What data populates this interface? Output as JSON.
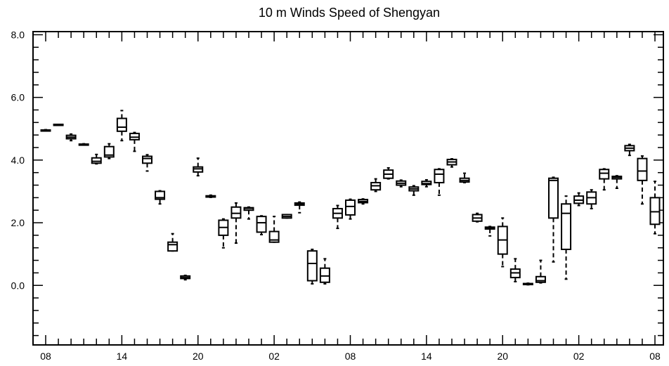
{
  "chart_data": {
    "type": "box",
    "title": "10 m Winds Speed of Shengyan",
    "xlabel": "",
    "ylabel": "",
    "ylim": [
      -1.9,
      8.1
    ],
    "y_ticks": [
      0.0,
      2.0,
      4.0,
      6.0,
      8.0
    ],
    "y_tick_labels": [
      "0.0",
      "2.0",
      "4.0",
      "6.0",
      "8.0"
    ],
    "x_tick_labels": [
      "08",
      "14",
      "20",
      "02",
      "08",
      "14",
      "20",
      "02",
      "08"
    ],
    "x_label_steps": [
      0,
      6,
      12,
      18,
      24,
      30,
      36,
      42,
      48
    ],
    "step_count": 48,
    "x_unit": "hour (time step index from first 08)",
    "boxes": [
      {
        "step": 0,
        "min": 4.93,
        "q1": 4.94,
        "median": 4.95,
        "q3": 4.96,
        "max": 4.97
      },
      {
        "step": 1,
        "min": 5.12,
        "q1": 5.12,
        "median": 5.13,
        "q3": 5.14,
        "max": 5.14
      },
      {
        "step": 2,
        "min": 4.62,
        "q1": 4.68,
        "median": 4.73,
        "q3": 4.79,
        "max": 4.83
      },
      {
        "step": 3,
        "min": 4.48,
        "q1": 4.49,
        "median": 4.5,
        "q3": 4.51,
        "max": 4.52
      },
      {
        "step": 4,
        "min": 3.88,
        "q1": 3.9,
        "median": 3.96,
        "q3": 4.07,
        "max": 4.18
      },
      {
        "step": 5,
        "min": 4.05,
        "q1": 4.1,
        "median": 4.16,
        "q3": 4.43,
        "max": 4.52
      },
      {
        "step": 6,
        "min": 4.62,
        "q1": 4.92,
        "median": 5.05,
        "q3": 5.33,
        "max": 5.58
      },
      {
        "step": 7,
        "min": 4.28,
        "q1": 4.65,
        "median": 4.73,
        "q3": 4.85,
        "max": 4.88
      },
      {
        "step": 8,
        "min": 3.65,
        "q1": 3.9,
        "median": 4.05,
        "q3": 4.12,
        "max": 4.17
      },
      {
        "step": 9,
        "min": 2.6,
        "q1": 2.75,
        "median": 2.8,
        "q3": 3.0,
        "max": 3.02
      },
      {
        "step": 10,
        "min": 1.1,
        "q1": 1.1,
        "median": 1.3,
        "q3": 1.38,
        "max": 1.65
      },
      {
        "step": 11,
        "min": 0.18,
        "q1": 0.22,
        "median": 0.25,
        "q3": 0.3,
        "max": 0.32
      },
      {
        "step": 12,
        "min": 3.5,
        "q1": 3.62,
        "median": 3.72,
        "q3": 3.78,
        "max": 4.06
      },
      {
        "step": 13,
        "min": 2.81,
        "q1": 2.82,
        "median": 2.84,
        "q3": 2.86,
        "max": 2.88
      },
      {
        "step": 14,
        "min": 1.2,
        "q1": 1.6,
        "median": 1.85,
        "q3": 2.08,
        "max": 2.12
      },
      {
        "step": 15,
        "min": 1.35,
        "q1": 2.15,
        "median": 2.3,
        "q3": 2.5,
        "max": 2.63
      },
      {
        "step": 16,
        "min": 2.12,
        "q1": 2.4,
        "median": 2.46,
        "q3": 2.48,
        "max": 2.5
      },
      {
        "step": 17,
        "min": 1.62,
        "q1": 1.7,
        "median": 2.0,
        "q3": 2.2,
        "max": 2.22
      },
      {
        "step": 18,
        "min": 1.38,
        "q1": 1.38,
        "median": 1.45,
        "q3": 1.72,
        "max": 2.2
      },
      {
        "step": 19,
        "min": 2.15,
        "q1": 2.15,
        "median": 2.2,
        "q3": 2.26,
        "max": 2.26
      },
      {
        "step": 20,
        "min": 2.32,
        "q1": 2.56,
        "median": 2.6,
        "q3": 2.63,
        "max": 2.66
      },
      {
        "step": 21,
        "min": 0.05,
        "q1": 0.15,
        "median": 0.7,
        "q3": 1.1,
        "max": 1.15
      },
      {
        "step": 22,
        "min": 0.05,
        "q1": 0.1,
        "median": 0.3,
        "q3": 0.55,
        "max": 0.85
      },
      {
        "step": 23,
        "min": 1.82,
        "q1": 2.15,
        "median": 2.3,
        "q3": 2.45,
        "max": 2.55
      },
      {
        "step": 24,
        "min": 2.12,
        "q1": 2.25,
        "median": 2.52,
        "q3": 2.72,
        "max": 2.75
      },
      {
        "step": 25,
        "min": 2.6,
        "q1": 2.64,
        "median": 2.68,
        "q3": 2.74,
        "max": 2.76
      },
      {
        "step": 26,
        "min": 3.0,
        "q1": 3.05,
        "median": 3.18,
        "q3": 3.28,
        "max": 3.4
      },
      {
        "step": 27,
        "min": 3.4,
        "q1": 3.42,
        "median": 3.55,
        "q3": 3.68,
        "max": 3.75
      },
      {
        "step": 28,
        "min": 3.15,
        "q1": 3.2,
        "median": 3.26,
        "q3": 3.33,
        "max": 3.36
      },
      {
        "step": 29,
        "min": 2.88,
        "q1": 3.02,
        "median": 3.08,
        "q3": 3.14,
        "max": 3.18
      },
      {
        "step": 30,
        "min": 3.15,
        "q1": 3.22,
        "median": 3.25,
        "q3": 3.32,
        "max": 3.37
      },
      {
        "step": 31,
        "min": 2.88,
        "q1": 3.28,
        "median": 3.55,
        "q3": 3.7,
        "max": 3.72
      },
      {
        "step": 32,
        "min": 3.78,
        "q1": 3.85,
        "median": 3.94,
        "q3": 4.02,
        "max": 4.04
      },
      {
        "step": 33,
        "min": 3.28,
        "q1": 3.3,
        "median": 3.35,
        "q3": 3.42,
        "max": 3.58
      },
      {
        "step": 34,
        "min": 2.03,
        "q1": 2.05,
        "median": 2.15,
        "q3": 2.26,
        "max": 2.3
      },
      {
        "step": 35,
        "min": 1.58,
        "q1": 1.8,
        "median": 1.83,
        "q3": 1.86,
        "max": 1.88
      },
      {
        "step": 36,
        "min": 0.6,
        "q1": 1.0,
        "median": 1.45,
        "q3": 1.88,
        "max": 2.15
      },
      {
        "step": 37,
        "min": 0.12,
        "q1": 0.25,
        "median": 0.4,
        "q3": 0.52,
        "max": 0.85
      },
      {
        "step": 38,
        "min": 0.02,
        "q1": 0.03,
        "median": 0.05,
        "q3": 0.06,
        "max": 0.07
      },
      {
        "step": 39,
        "min": 0.08,
        "q1": 0.1,
        "median": 0.15,
        "q3": 0.28,
        "max": 0.8
      },
      {
        "step": 40,
        "min": 0.75,
        "q1": 2.15,
        "median": 3.35,
        "q3": 3.42,
        "max": 3.45
      },
      {
        "step": 41,
        "min": 0.2,
        "q1": 1.15,
        "median": 2.3,
        "q3": 2.6,
        "max": 2.85
      },
      {
        "step": 42,
        "min": 2.55,
        "q1": 2.62,
        "median": 2.72,
        "q3": 2.85,
        "max": 2.95
      },
      {
        "step": 43,
        "min": 2.45,
        "q1": 2.6,
        "median": 2.8,
        "q3": 2.98,
        "max": 3.05
      },
      {
        "step": 44,
        "min": 3.05,
        "q1": 3.4,
        "median": 3.58,
        "q3": 3.7,
        "max": 3.72
      },
      {
        "step": 45,
        "min": 3.1,
        "q1": 3.4,
        "median": 3.45,
        "q3": 3.48,
        "max": 3.5
      },
      {
        "step": 46,
        "min": 4.15,
        "q1": 4.3,
        "median": 4.38,
        "q3": 4.46,
        "max": 4.5
      },
      {
        "step": 47,
        "min": 2.6,
        "q1": 3.35,
        "median": 3.65,
        "q3": 4.05,
        "max": 4.13
      },
      {
        "step": 48,
        "min": 1.65,
        "q1": 1.95,
        "median": 2.35,
        "q3": 2.8,
        "max": 3.32
      }
    ]
  }
}
